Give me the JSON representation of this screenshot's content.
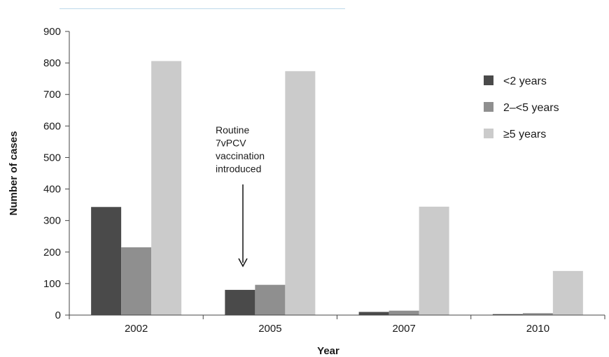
{
  "chart_data": {
    "type": "bar",
    "title": "",
    "xlabel": "Year",
    "ylabel": "Number of cases",
    "categories": [
      "2002",
      "2005",
      "2007",
      "2010"
    ],
    "ylim": [
      0,
      900
    ],
    "yticks": [
      0,
      100,
      200,
      300,
      400,
      500,
      600,
      700,
      800,
      900
    ],
    "grid": false,
    "legend_position": "right",
    "series": [
      {
        "name": "<2 years",
        "color": "#4a4a4a",
        "values": [
          343,
          80,
          10,
          3
        ]
      },
      {
        "name": "2–<5 years",
        "color": "#8f8f8f",
        "values": [
          215,
          96,
          14,
          6
        ]
      },
      {
        "name": "≥5 years",
        "color": "#cbcbcb",
        "values": [
          806,
          774,
          344,
          140
        ]
      }
    ],
    "annotation": {
      "lines": [
        "Routine",
        "7vPCV",
        "vaccination",
        "introduced"
      ],
      "category": "2005"
    }
  }
}
